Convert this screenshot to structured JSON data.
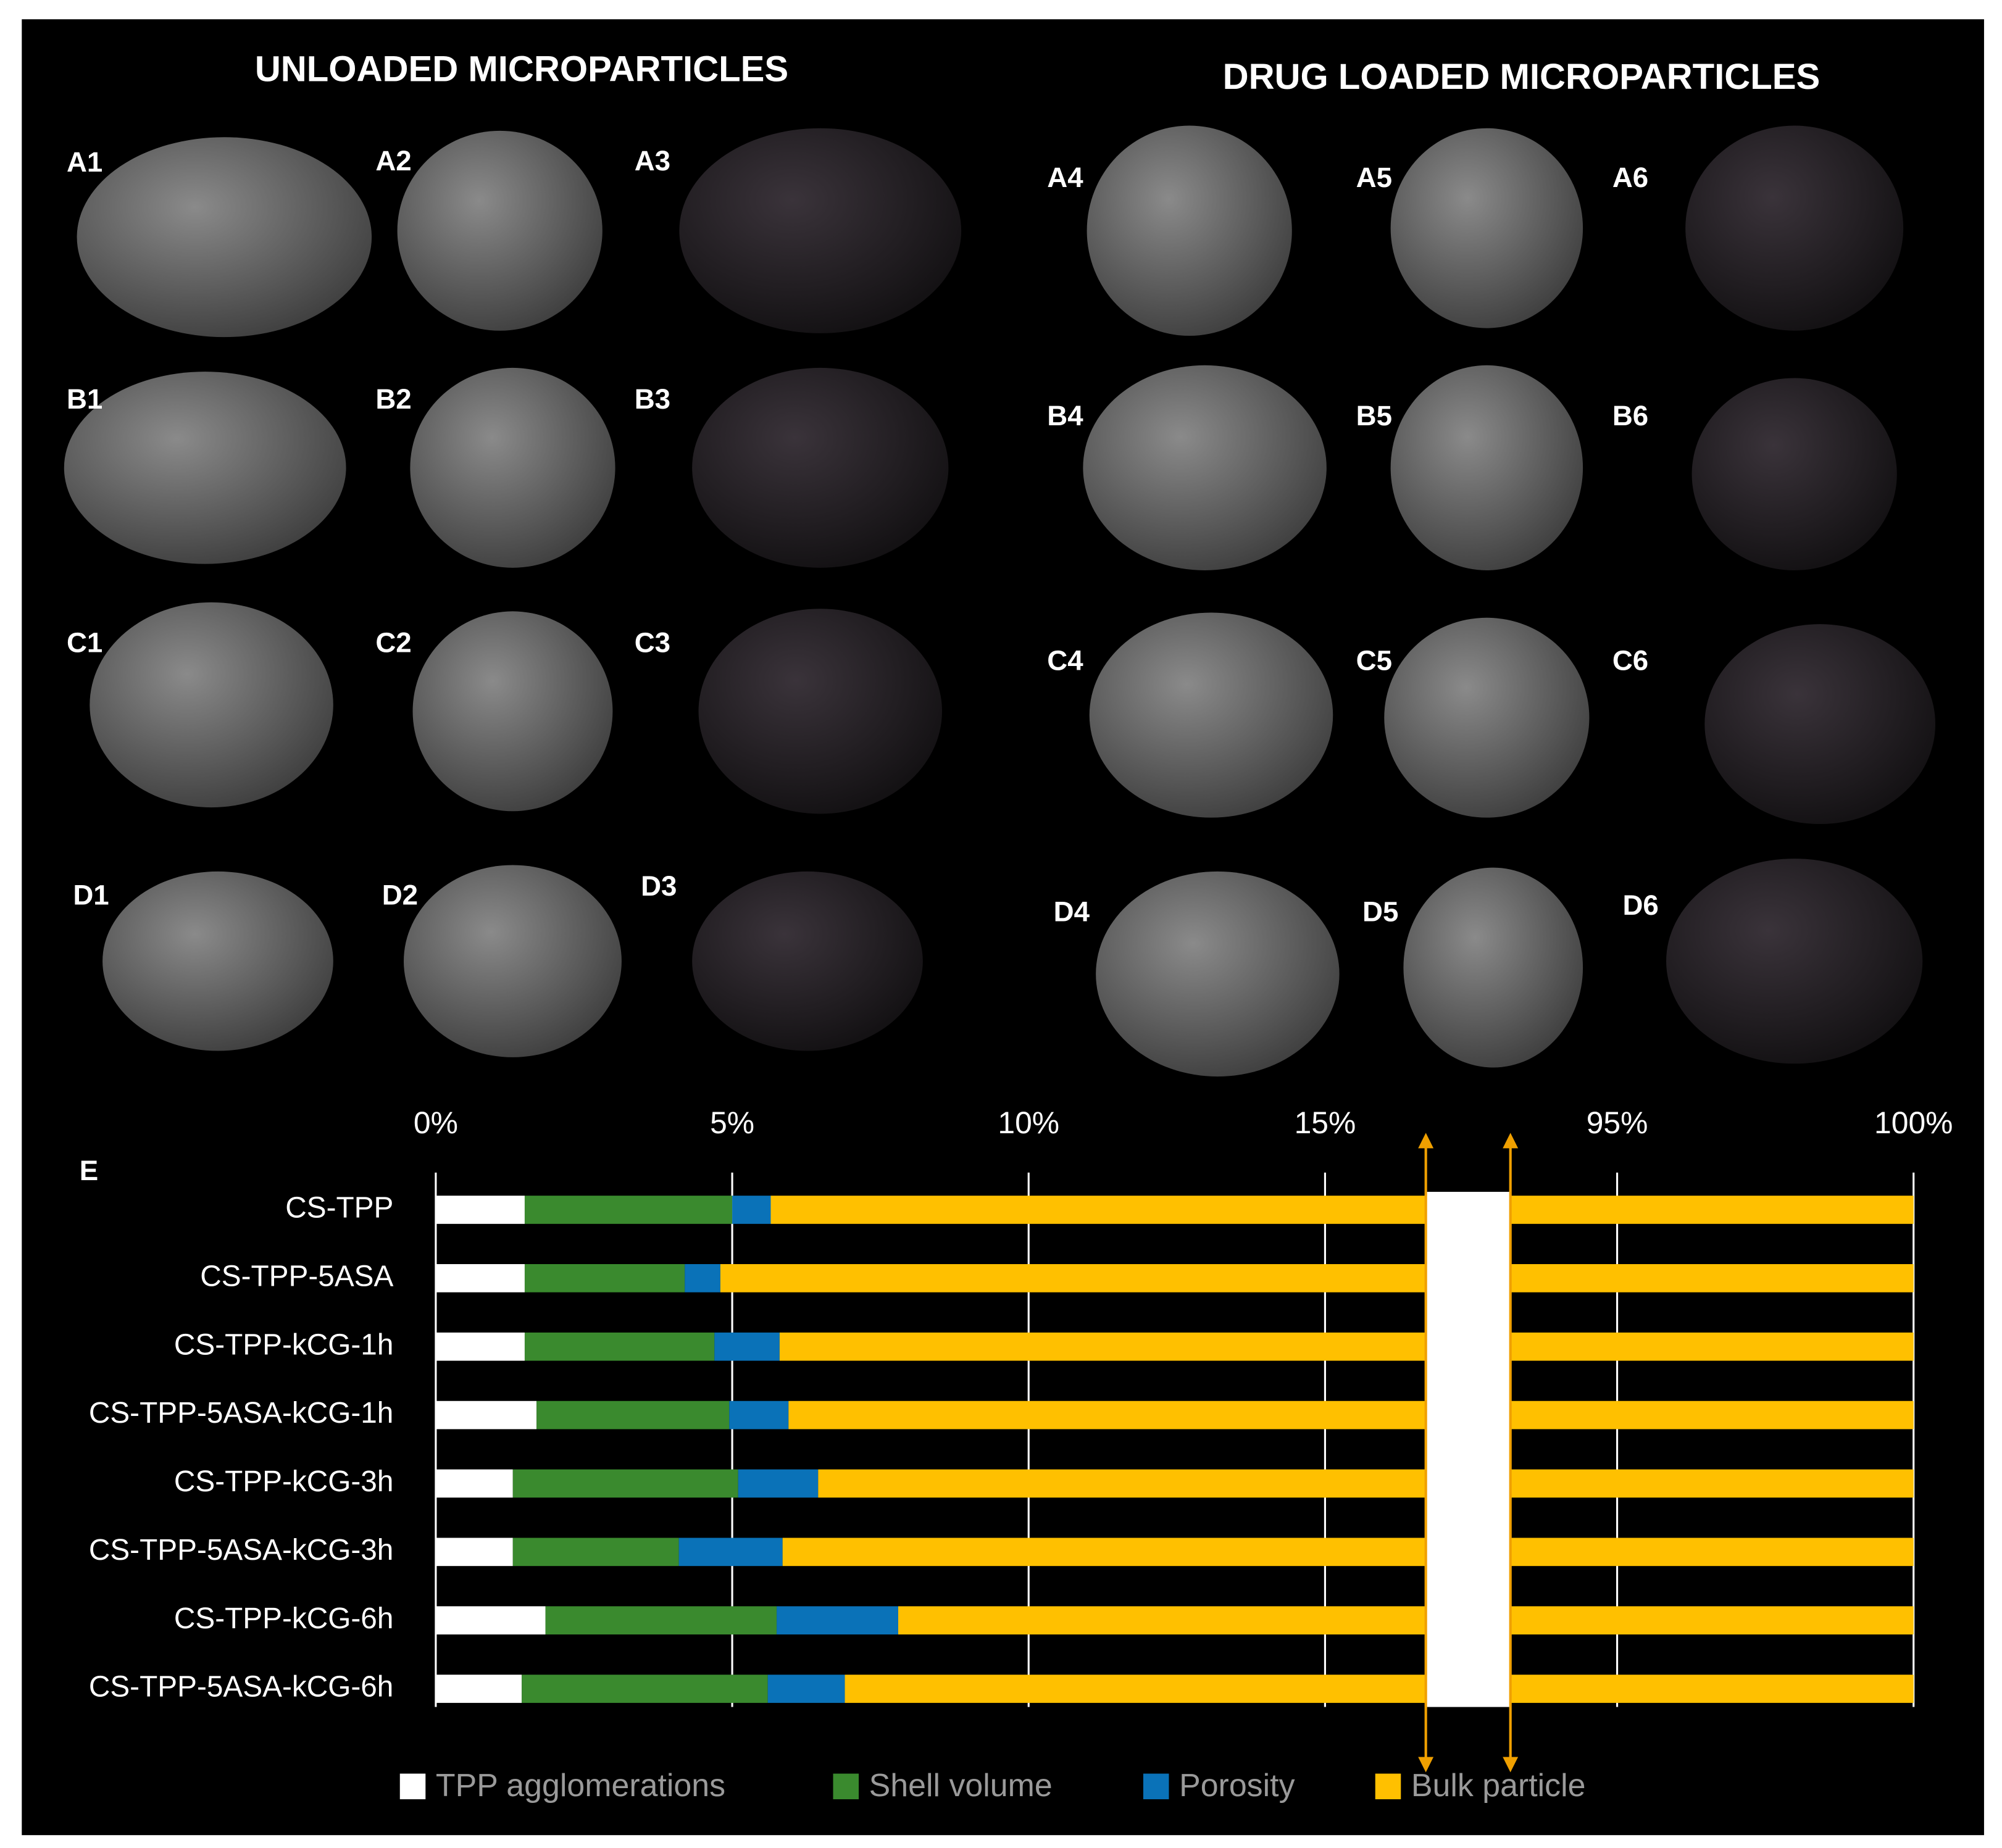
{
  "headings": [
    "UNLOADED MICROPARTICLES",
    "DRUG LOADED MICROPARTICLES"
  ],
  "panels": [
    "A1",
    "A2",
    "A3",
    "A4",
    "A5",
    "A6",
    "B1",
    "B2",
    "B3",
    "B4",
    "B5",
    "B6",
    "C1",
    "C2",
    "C3",
    "C4",
    "C5",
    "C6",
    "D1",
    "D2",
    "D3",
    "D4",
    "D5",
    "D6"
  ],
  "chart_data": {
    "type": "stacked-barh",
    "panel_label": "E",
    "categories": [
      "CS-TPP",
      "CS-TPP-5ASA",
      "CS-TPP-kCG-1h",
      "CS-TPP-5ASA-kCG-1h",
      "CS-TPP-kCG-3h",
      "CS-TPP-5ASA-kCG-3h",
      "CS-TPP-kCG-6h",
      "CS-TPP-5ASA-kCG-6h"
    ],
    "series": [
      {
        "name": "TPP agglomerations",
        "color": "#ffffff",
        "values": [
          1.5,
          1.5,
          1.5,
          1.7,
          1.3,
          1.3,
          1.85,
          1.45
        ]
      },
      {
        "name": "Shell volume",
        "color": "#3a8a2e",
        "values": [
          3.5,
          2.7,
          3.2,
          3.25,
          3.8,
          2.8,
          3.9,
          4.15
        ]
      },
      {
        "name": "Porosity",
        "color": "#0a72b8",
        "values": [
          0.65,
          0.6,
          1.1,
          1.0,
          1.35,
          1.75,
          2.05,
          1.3
        ]
      },
      {
        "name": "Bulk particle",
        "color": "#ffc000",
        "values": [
          94.35,
          95.2,
          94.2,
          94.05,
          93.55,
          94.15,
          92.2,
          93.1
        ]
      }
    ],
    "xlim": [
      0,
      100
    ],
    "xbreak": [
      16.7,
      93.2
    ],
    "xticks": [
      {
        "value": 0,
        "label": "0%"
      },
      {
        "value": 5,
        "label": "5%"
      },
      {
        "value": 10,
        "label": "10%"
      },
      {
        "value": 15,
        "label": "15%"
      },
      {
        "value": 95,
        "label": "95%"
      },
      {
        "value": 100,
        "label": "100%"
      }
    ],
    "grid": true,
    "legend": "bottom"
  }
}
